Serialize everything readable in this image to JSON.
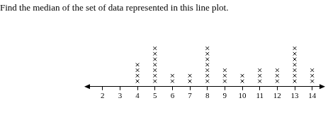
{
  "chart_data": {
    "type": "dot",
    "title": "Find the median of the set of data represented in this line plot.",
    "x": [
      4,
      5,
      6,
      7,
      8,
      9,
      10,
      11,
      12,
      13,
      14
    ],
    "values": [
      4,
      7,
      2,
      2,
      7,
      3,
      2,
      3,
      3,
      7,
      3
    ],
    "xlim": [
      1.2,
      14.5
    ],
    "xticks": [
      2,
      3,
      4,
      5,
      6,
      7,
      8,
      9,
      10,
      11,
      12,
      13,
      14
    ],
    "ylim": [
      0,
      12
    ],
    "tick_labels": "x",
    "grid": false,
    "marker": "x",
    "color": "#000000"
  }
}
